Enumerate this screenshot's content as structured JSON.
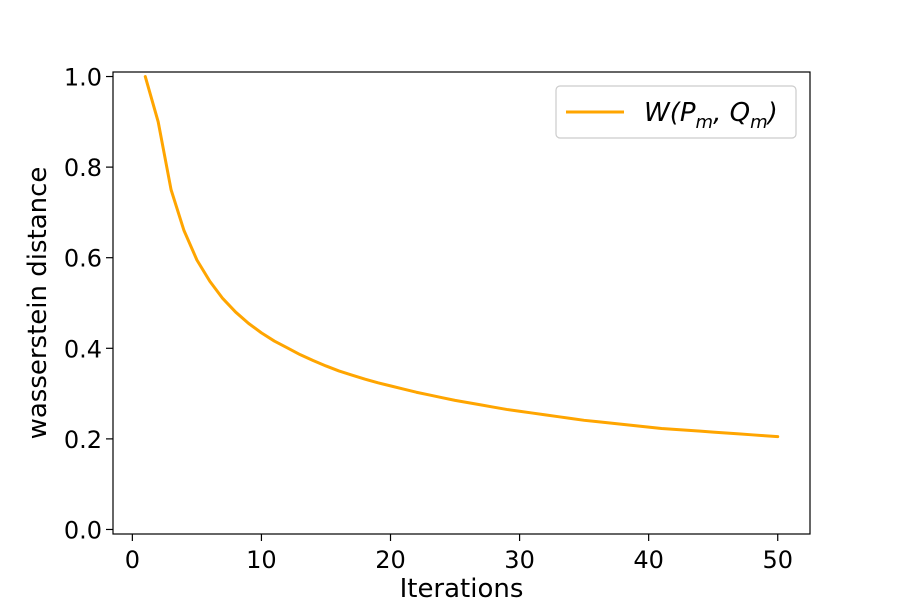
{
  "chart_data": {
    "type": "line",
    "xlabel": "Iterations",
    "ylabel": "wasserstein distance",
    "xlim": [
      -1.5,
      52.5
    ],
    "ylim": [
      -0.01,
      1.01
    ],
    "x_ticks": [
      0,
      10,
      20,
      30,
      40,
      50
    ],
    "x_tick_labels": [
      "0",
      "10",
      "20",
      "30",
      "40",
      "50"
    ],
    "y_ticks": [
      0.0,
      0.2,
      0.4,
      0.6,
      0.8,
      1.0
    ],
    "y_tick_labels": [
      "0.0",
      "0.2",
      "0.4",
      "0.6",
      "0.8",
      "1.0"
    ],
    "grid": false,
    "legend_position": "top-right",
    "series": [
      {
        "name": "W(Pm, Qm)",
        "legend_main": "W(P",
        "legend_sub1": "m",
        "legend_mid": ", Q",
        "legend_sub2": "m",
        "legend_end": ")",
        "color": "#FFA500",
        "x": [
          1,
          2,
          3,
          4,
          5,
          6,
          7,
          8,
          9,
          10,
          11,
          12,
          13,
          14,
          15,
          16,
          17,
          18,
          19,
          20,
          21,
          22,
          23,
          24,
          25,
          26,
          27,
          28,
          29,
          30,
          31,
          32,
          33,
          34,
          35,
          36,
          37,
          38,
          39,
          40,
          41,
          42,
          43,
          44,
          45,
          46,
          47,
          48,
          49,
          50
        ],
        "y": [
          1.0,
          0.9,
          0.75,
          0.66,
          0.595,
          0.548,
          0.51,
          0.48,
          0.455,
          0.434,
          0.416,
          0.401,
          0.386,
          0.373,
          0.361,
          0.35,
          0.341,
          0.332,
          0.324,
          0.317,
          0.31,
          0.303,
          0.297,
          0.291,
          0.285,
          0.28,
          0.275,
          0.27,
          0.265,
          0.261,
          0.257,
          0.253,
          0.249,
          0.245,
          0.241,
          0.238,
          0.235,
          0.232,
          0.229,
          0.226,
          0.223,
          0.221,
          0.219,
          0.217,
          0.215,
          0.213,
          0.211,
          0.209,
          0.207,
          0.205
        ]
      }
    ]
  }
}
